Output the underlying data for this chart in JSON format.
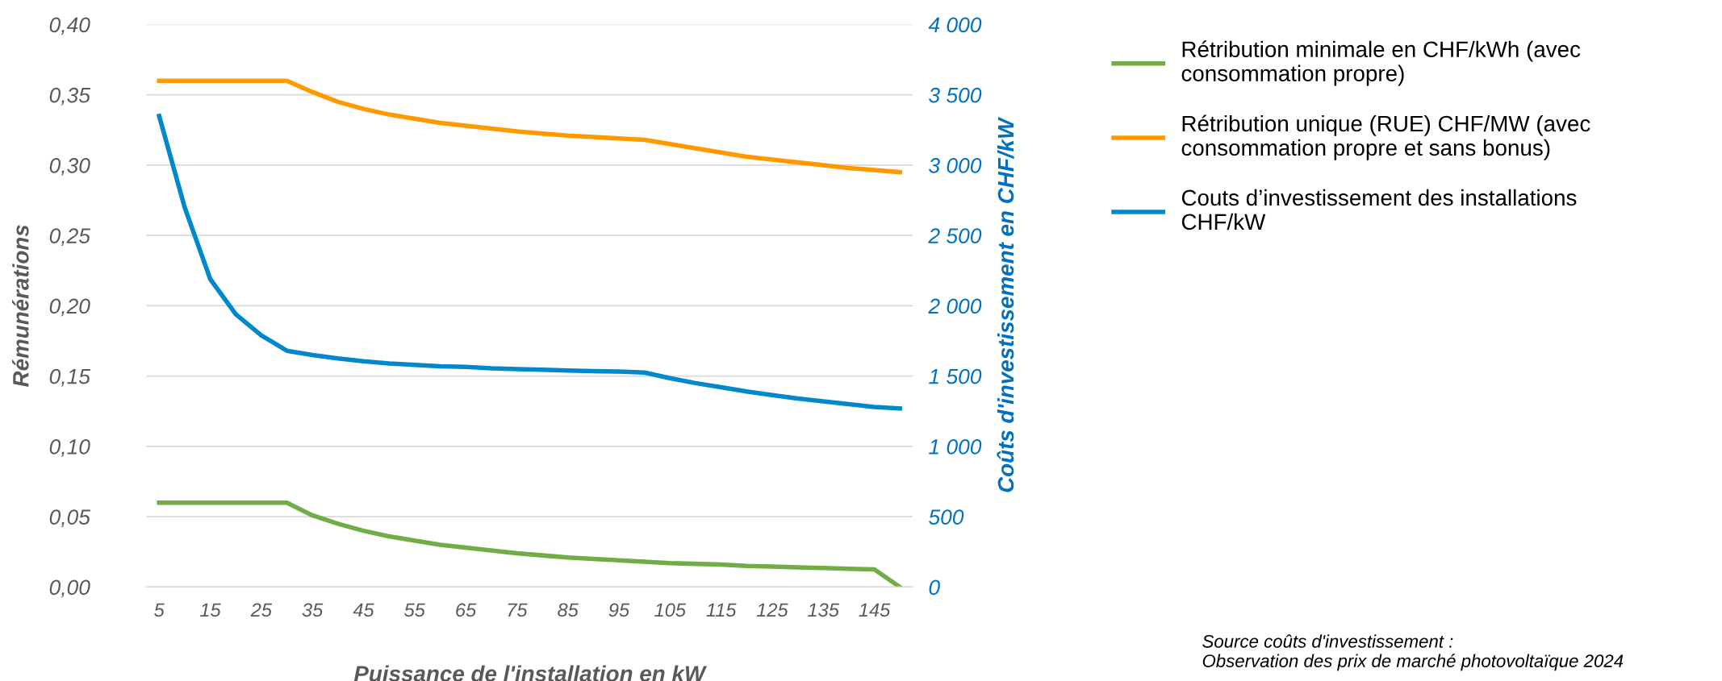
{
  "chart_data": {
    "type": "line",
    "xlabel": "Puissance de l'installation en kW",
    "ylabel": "Rémunérations",
    "y2label": "Coûts d'investissement en CHF/kW",
    "categories": [
      "5",
      null,
      "15",
      null,
      "25",
      null,
      "35",
      null,
      "45",
      null,
      "55",
      null,
      "65",
      null,
      "75",
      null,
      "85",
      null,
      "95",
      null,
      "105",
      null,
      "115",
      null,
      "125",
      null,
      "135",
      null,
      "145",
      null
    ],
    "series": [
      {
        "name": "Rétribution minimale en CHF/kWh (avec consommation propre)",
        "color": "#70ad47",
        "values": [
          0.06,
          0.06,
          0.06,
          0.06,
          0.06,
          0.06,
          0.051,
          0.045,
          0.04,
          0.036,
          0.033,
          0.03,
          0.028,
          0.026,
          0.024,
          0.0225,
          0.021,
          0.02,
          0.019,
          0.018,
          0.017,
          0.0165,
          0.016,
          0.015,
          0.0145,
          0.014,
          0.0135,
          0.013,
          0.0125,
          0.0
        ]
      },
      {
        "name": "Rétribution unique (RUE) CHF/MW (avec consommation propre et sans bonus)",
        "color": "#ff9900",
        "values": [
          0.36,
          0.36,
          0.36,
          0.36,
          0.36,
          0.36,
          0.352,
          0.345,
          0.34,
          0.336,
          0.333,
          0.33,
          0.328,
          0.326,
          0.324,
          0.3225,
          0.321,
          0.32,
          0.319,
          0.318,
          0.315,
          0.312,
          0.309,
          0.306,
          0.304,
          0.302,
          0.3,
          0.298,
          0.2965,
          0.295
        ]
      },
      {
        "name": "Couts d’investissement des installations CHF/kW",
        "color": "#0088cc",
        "axis": "y2",
        "values": [
          3350,
          2700,
          2190,
          1940,
          1790,
          1680,
          1650,
          1625,
          1605,
          1590,
          1580,
          1570,
          1565,
          1555,
          1550,
          1545,
          1540,
          1535,
          1532,
          1525,
          1485,
          1450,
          1420,
          1390,
          1365,
          1340,
          1320,
          1300,
          1280,
          1270
        ]
      }
    ],
    "ylim": [
      0,
      0.4
    ],
    "yticks": [
      {
        "value": 0,
        "label": "0,00"
      },
      {
        "value": 0.05,
        "label": "0,05"
      },
      {
        "value": 0.1,
        "label": "0,10"
      },
      {
        "value": 0.15,
        "label": "0,15"
      },
      {
        "value": 0.2,
        "label": "0,20"
      },
      {
        "value": 0.25,
        "label": "0,25"
      },
      {
        "value": 0.3,
        "label": "0,30"
      },
      {
        "value": 0.35,
        "label": "0,35"
      },
      {
        "value": 0.4,
        "label": "0,40"
      }
    ],
    "y2lim": [
      0,
      4000
    ],
    "y2ticks": [
      0,
      500,
      {
        "value": 1000,
        "label": "1 000"
      },
      {
        "value": 1500,
        "label": "1 500"
      },
      {
        "value": 2000,
        "label": "2 000"
      },
      {
        "value": 2500,
        "label": "2 500"
      },
      {
        "value": 3000,
        "label": "3 000"
      },
      {
        "value": 3500,
        "label": "3 500"
      },
      {
        "value": 4000,
        "label": "4 000"
      }
    ],
    "grid": "y",
    "legend": "right",
    "marker": "none",
    "line_style": "solid",
    "annotations": [
      "Source coûts d'investissement :\nObservation des prix de marché photovoltaïque 2024"
    ]
  }
}
